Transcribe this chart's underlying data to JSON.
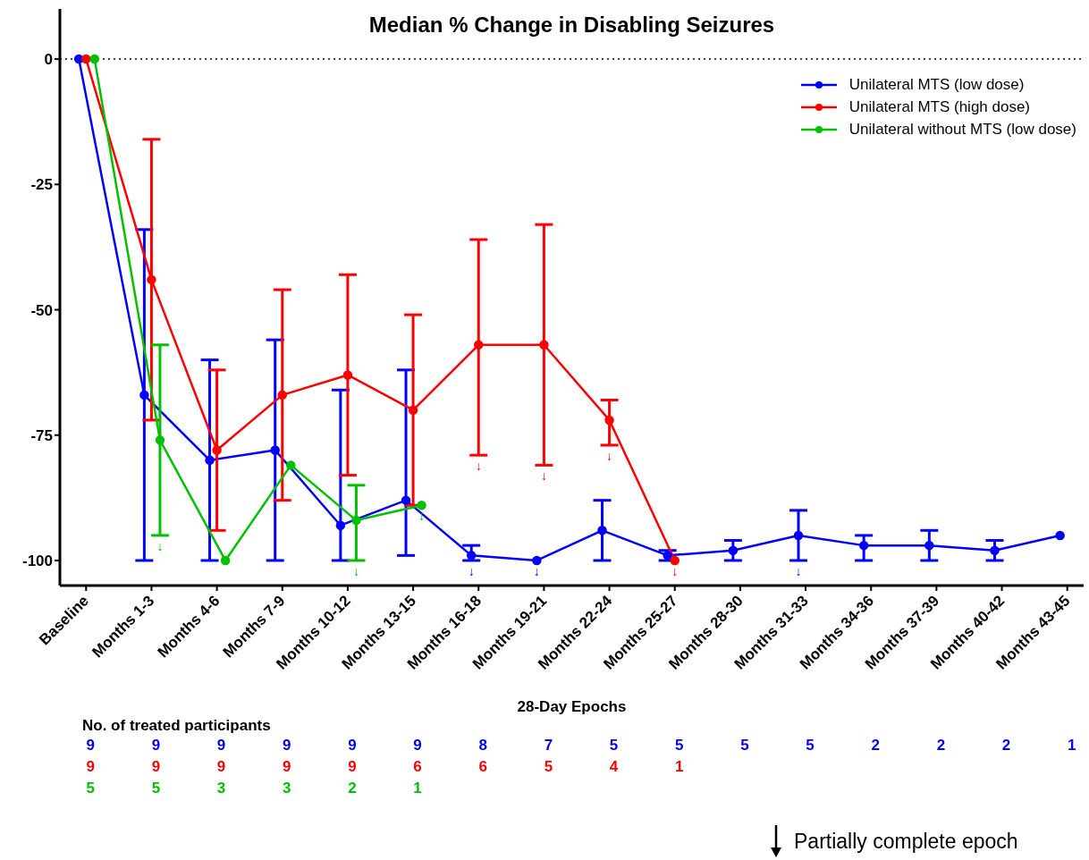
{
  "chart_data": {
    "type": "line",
    "title": "Median % Change in Disabling Seizures",
    "xlabel": "28-Day Epochs",
    "categories": [
      "Baseline",
      "Months 1-3",
      "Months 4-6",
      "Months 7-9",
      "Months 10-12",
      "Months 13-15",
      "Months 16-18",
      "Months 19-21",
      "Months 22-24",
      "Months 25-27",
      "Months 28-30",
      "Months 31-33",
      "Months 34-36",
      "Months 37-39",
      "Months 40-42",
      "Months 43-45"
    ],
    "series": [
      {
        "name": "Unilateral MTS (low dose)",
        "color": "#0000ff",
        "values": [
          0,
          -67,
          -80,
          -78,
          -93,
          -88,
          -99,
          -100,
          -94,
          -99,
          -98,
          -95,
          -97,
          -97,
          -98,
          -95
        ],
        "errors": [
          null,
          [
            -100,
            -34
          ],
          [
            -100,
            -60
          ],
          [
            -100,
            -56
          ],
          [
            -100,
            -66
          ],
          [
            -99,
            -62
          ],
          [
            -100,
            -97
          ],
          null,
          [
            -100,
            -88
          ],
          [
            -100,
            -98
          ],
          [
            -100,
            -96
          ],
          [
            -100,
            -90
          ],
          [
            -100,
            -95
          ],
          [
            -100,
            -94
          ],
          [
            -100,
            -96
          ],
          null
        ]
      },
      {
        "name": "Unilateral MTS (high dose)",
        "color": "#ff0000",
        "values": [
          0,
          -44,
          -78,
          -67,
          -63,
          -70,
          -57,
          -57,
          -72,
          -100,
          null,
          null,
          null,
          null,
          null,
          null
        ],
        "errors": [
          null,
          [
            -72,
            -16
          ],
          [
            -94,
            -62
          ],
          [
            -88,
            -46
          ],
          [
            -83,
            -43
          ],
          [
            -89,
            -51
          ],
          [
            -79,
            -36
          ],
          [
            -81,
            -33
          ],
          [
            -77,
            -68
          ],
          null,
          null,
          null,
          null,
          null,
          null,
          null
        ]
      },
      {
        "name": "Unilateral without MTS (low dose)",
        "color": "#00c000",
        "values": [
          0,
          -76,
          -100,
          -81,
          -92,
          -89,
          null,
          null,
          null,
          null,
          null,
          null,
          null,
          null,
          null,
          null
        ],
        "errors": [
          null,
          [
            -95,
            -57
          ],
          null,
          null,
          [
            -100,
            -85
          ],
          null,
          null,
          null,
          null,
          null,
          null,
          null,
          null,
          null,
          null,
          null
        ]
      }
    ],
    "ylim": [
      -105,
      10
    ],
    "yticks": [
      0,
      -25,
      -50,
      -75,
      -100
    ],
    "grid": false,
    "legend": "top right",
    "marker": "circle",
    "line_style": "solid",
    "ref_lines": [
      {
        "axis": "y",
        "value": 0,
        "line_style": "dotted",
        "color": "#000000"
      }
    ],
    "annotations": [
      "No. of treated participants",
      "Partially complete epoch",
      "9",
      "9",
      "9",
      "9",
      "9",
      "9",
      "8",
      "7",
      "5",
      "5",
      "5",
      "5",
      "2",
      "2",
      "2",
      "1",
      "9",
      "9",
      "9",
      "9",
      "9",
      "6",
      "6",
      "5",
      "4",
      "1",
      "5",
      "5",
      "3",
      "3",
      "2",
      "1",
      {
        "text": "↓",
        "x": "Months 1-3",
        "y": -95
      },
      {
        "text": "↓",
        "x": "Months 10-12",
        "y": -100
      },
      {
        "text": "↓",
        "x": "Months 13-15",
        "y": -89
      },
      {
        "text": "↓",
        "x": "Months 16-18",
        "y": -100
      },
      {
        "text": "↓",
        "x": "Months 19-21",
        "y": -100
      },
      {
        "text": "↓",
        "x": "Months 31-33",
        "y": -100
      },
      {
        "text": "↓",
        "x": "Months 16-18",
        "y": -79
      },
      {
        "text": "↓",
        "x": "Months 19-21",
        "y": -81
      },
      {
        "text": "↓",
        "x": "Months 22-24",
        "y": -77
      },
      {
        "text": "↓",
        "x": "Months 25-27",
        "y": -100
      }
    ]
  }
}
